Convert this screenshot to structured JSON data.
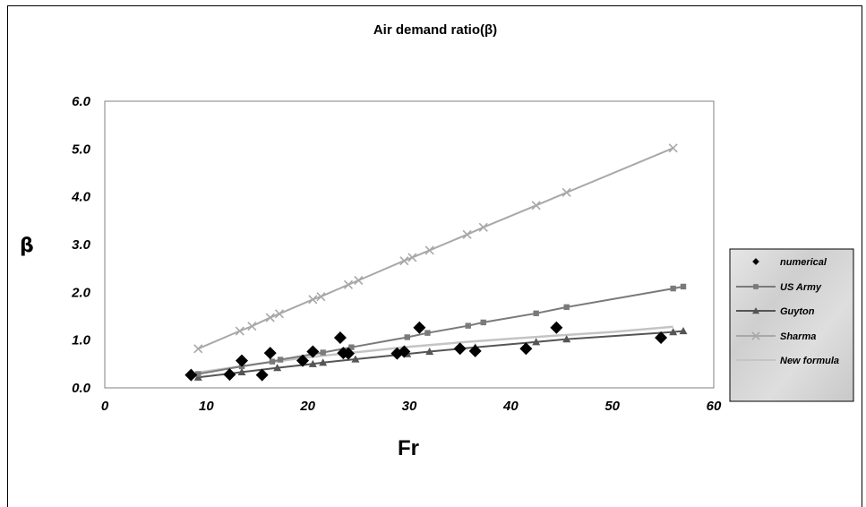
{
  "chart_data": {
    "type": "scatter",
    "title": "Air demand ratio(β)",
    "xlabel": "Fr",
    "ylabel": "β",
    "xlim": [
      0,
      60
    ],
    "ylim": [
      0,
      6
    ],
    "xticks": [
      "0",
      "10",
      "20",
      "30",
      "40",
      "50",
      "60"
    ],
    "yticks": [
      "0.0",
      "1.0",
      "2.0",
      "3.0",
      "4.0",
      "5.0",
      "6.0"
    ],
    "grid": false,
    "legend_position": "right",
    "series": [
      {
        "name": "numerical",
        "style": "markers",
        "marker": "diamond",
        "color": "#000000",
        "x": [
          8.5,
          12.3,
          13.5,
          15.5,
          16.3,
          19.5,
          20.5,
          23.2,
          23.5,
          24,
          28.8,
          29.5,
          31,
          35,
          36.5,
          41.5,
          44.5,
          54.8
        ],
        "y": [
          0.27,
          0.28,
          0.57,
          0.27,
          0.73,
          0.57,
          0.76,
          1.05,
          0.73,
          0.72,
          0.72,
          0.76,
          1.26,
          0.82,
          0.77,
          0.82,
          1.26,
          1.05
        ]
      },
      {
        "name": "US Army",
        "style": "line-markers",
        "marker": "square",
        "color": "#7a7a7a",
        "x": [
          9.2,
          13.5,
          16.5,
          17.3,
          21.5,
          24.3,
          29.8,
          31.8,
          35.8,
          37.3,
          42.5,
          45.5,
          56,
          57
        ],
        "y": [
          0.29,
          0.45,
          0.55,
          0.59,
          0.74,
          0.85,
          1.06,
          1.15,
          1.3,
          1.37,
          1.56,
          1.69,
          2.08,
          2.12
        ]
      },
      {
        "name": "Guyton",
        "style": "line-markers",
        "marker": "triangle",
        "color": "#555555",
        "x": [
          9.2,
          13.5,
          17,
          20.5,
          21.5,
          24.7,
          29.8,
          32,
          36.5,
          42.5,
          45.5,
          56,
          57
        ],
        "y": [
          0.22,
          0.33,
          0.42,
          0.5,
          0.53,
          0.6,
          0.71,
          0.76,
          0.85,
          0.96,
          1.02,
          1.17,
          1.19
        ]
      },
      {
        "name": "Sharma",
        "style": "line-markers",
        "marker": "x",
        "color": "#a8a8a8",
        "x": [
          9.2,
          13.3,
          14.5,
          16.3,
          17.2,
          20.5,
          21.3,
          24,
          25,
          29.5,
          30.3,
          32,
          35.7,
          37.3,
          42.5,
          45.5,
          56
        ],
        "y": [
          0.82,
          1.19,
          1.29,
          1.47,
          1.55,
          1.85,
          1.91,
          2.16,
          2.25,
          2.66,
          2.73,
          2.88,
          3.21,
          3.36,
          3.82,
          4.09,
          5.02
        ]
      },
      {
        "name": "New formula",
        "style": "line",
        "color": "#c4c4c4",
        "x": [
          9.2,
          15,
          20,
          25,
          30,
          35,
          40,
          45,
          50,
          56
        ],
        "y": [
          0.32,
          0.5,
          0.64,
          0.75,
          0.86,
          0.95,
          1.03,
          1.1,
          1.17,
          1.28
        ]
      }
    ]
  }
}
